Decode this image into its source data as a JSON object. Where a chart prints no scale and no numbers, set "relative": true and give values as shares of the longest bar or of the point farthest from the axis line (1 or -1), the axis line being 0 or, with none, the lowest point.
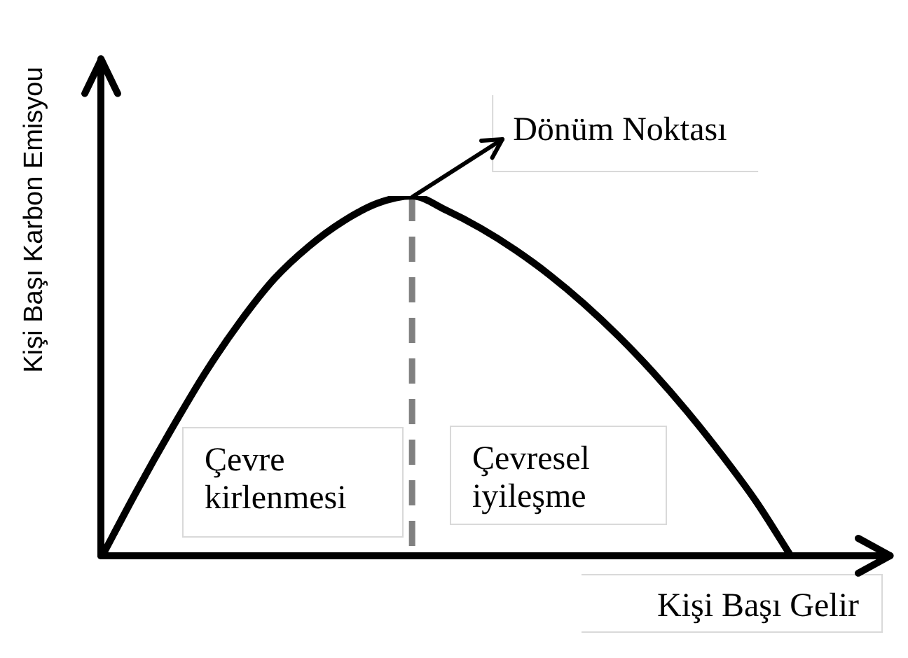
{
  "chart_data": {
    "type": "line",
    "xlabel": "Kişi Başı Gelir",
    "ylabel": "Kişi Başı Karbon Emisyou",
    "categories": [
      null,
      null,
      null,
      null,
      null,
      null,
      null,
      null,
      null,
      null,
      null,
      null,
      null,
      null,
      null,
      null,
      null,
      null,
      null,
      null,
      null,
      null,
      null,
      null
    ],
    "values": [
      0,
      0.18,
      0.35,
      0.51,
      0.65,
      0.77,
      0.86,
      0.93,
      0.98,
      1,
      0.96,
      0.91,
      0.85,
      0.78,
      0.7,
      0.61,
      0.51,
      0.4,
      0.28,
      0.15,
      0,
      null,
      null,
      null
    ],
    "color": "#000000",
    "relative": true,
    "marker": "none",
    "line_style": "solid",
    "annotations": [
      "Dönüm Noktası",
      "Çevre kirlenmesi",
      "Çevresel iyileşme"
    ]
  }
}
